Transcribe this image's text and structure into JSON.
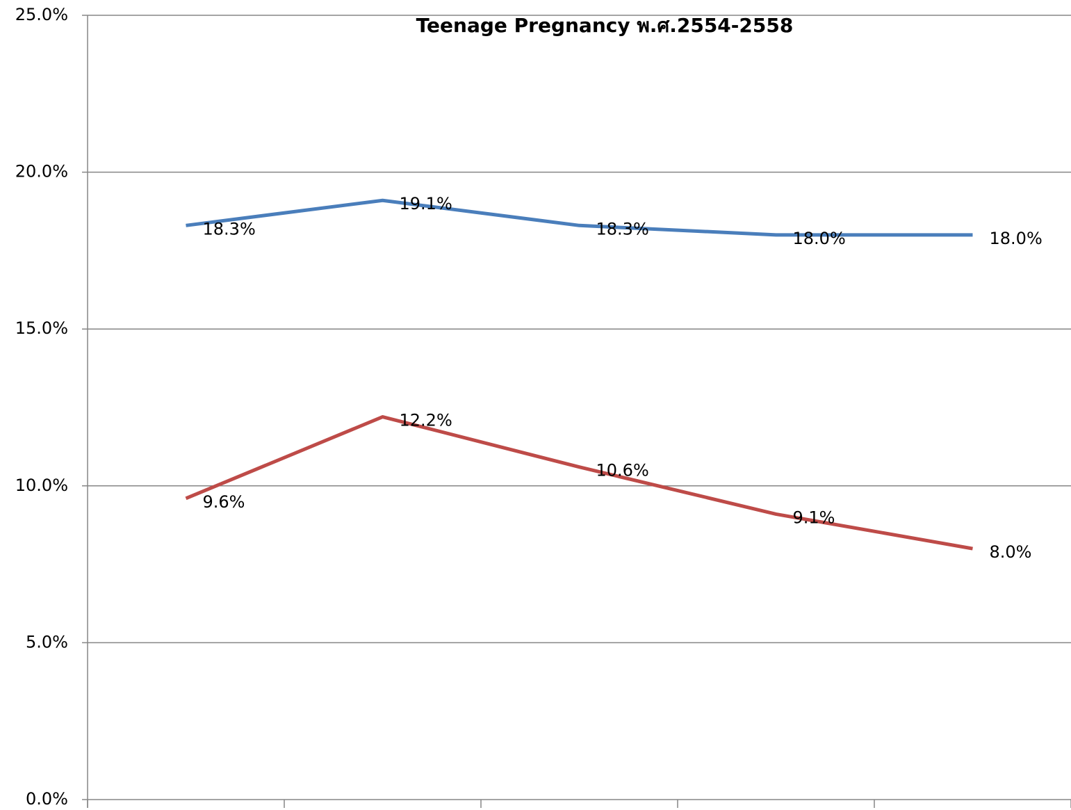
{
  "chart_data": {
    "type": "line",
    "title": "Teenage Pregnancy  พ.ศ.2554-2558",
    "categories": [
      null,
      null,
      null,
      null,
      null
    ],
    "series": [
      {
        "color": "#4a7ebb",
        "values": [
          18.3,
          19.1,
          18.3,
          18.0,
          18.0
        ],
        "value_labels": [
          "18.3%",
          "19.1%",
          "18.3%",
          "18.0%",
          "18.0%"
        ]
      },
      {
        "color": "#be4b48",
        "values": [
          9.6,
          12.2,
          10.6,
          9.1,
          8.0
        ],
        "value_labels": [
          "9.6%",
          "12.2%",
          "10.6%",
          "9.1%",
          "8.0%"
        ]
      }
    ],
    "ylim": [
      0,
      25
    ],
    "yticks": [
      {
        "value": 0,
        "label": "0.0%"
      },
      {
        "value": 5,
        "label": "5.0%"
      },
      {
        "value": 10,
        "label": "10.0%"
      },
      {
        "value": 15,
        "label": "15.0%"
      },
      {
        "value": 20,
        "label": "20.0%"
      },
      {
        "value": 25,
        "label": "25.0%"
      }
    ],
    "grid": true
  }
}
